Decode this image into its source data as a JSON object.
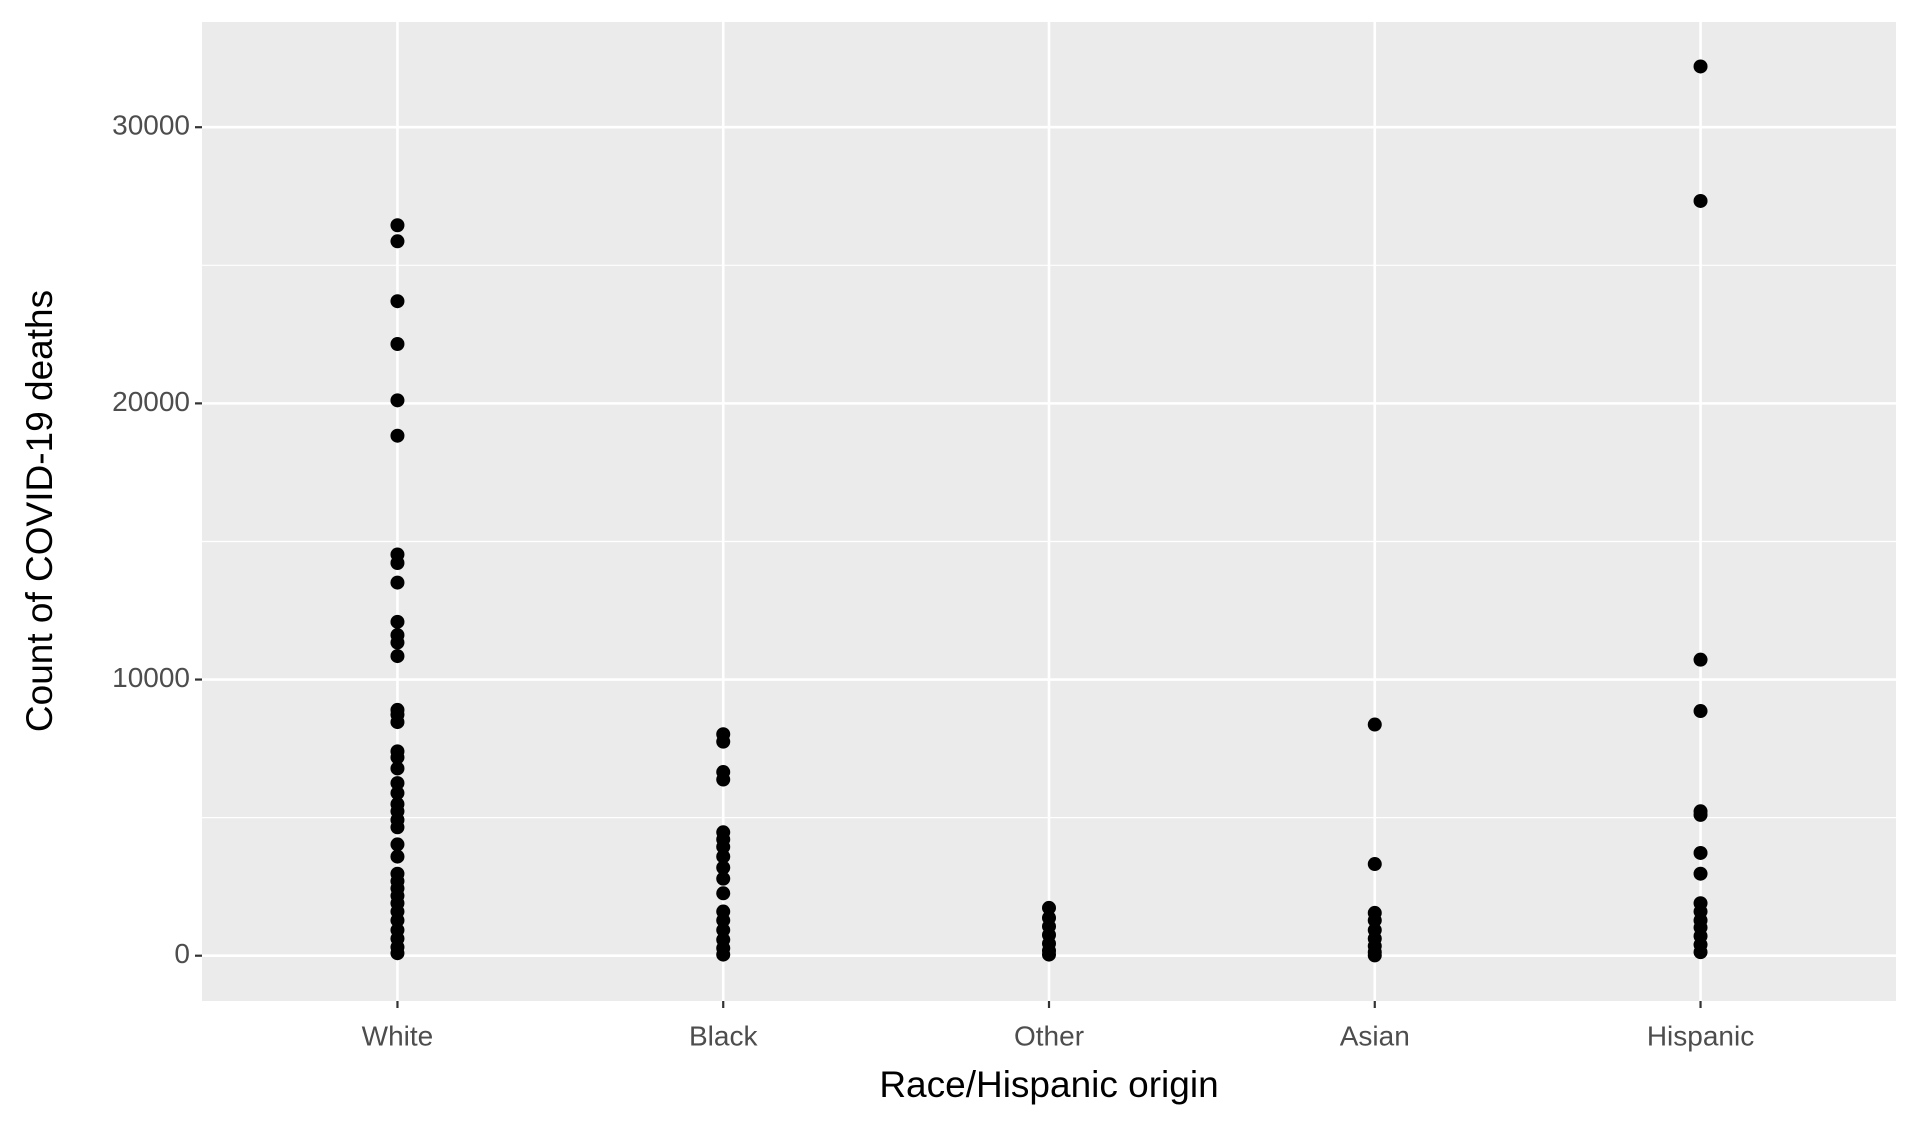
{
  "chart_data": {
    "type": "strip",
    "x_label": "Race/Hispanic origin",
    "y_label": "Count of COVID-19 deaths",
    "categories": [
      "White",
      "Black",
      "Other",
      "Asian",
      "Hispanic"
    ],
    "values": [
      [
        26450,
        25870,
        23700,
        22150,
        20110,
        18830,
        14530,
        14220,
        13510,
        12090,
        11610,
        11340,
        10850,
        8900,
        8730,
        8460,
        7400,
        7180,
        6780,
        6250,
        5890,
        5490,
        5230,
        4920,
        4650,
        4030,
        3590,
        2970,
        2700,
        2440,
        2170,
        1900,
        1600,
        1280,
        930,
        620,
        310,
        90
      ],
      [
        8020,
        7750,
        6650,
        6380,
        4470,
        4210,
        3940,
        3590,
        3190,
        2790,
        2260,
        1600,
        1280,
        930,
        580,
        270,
        40
      ],
      [
        1730,
        1370,
        1060,
        750,
        440,
        180,
        40
      ],
      [
        8370,
        3320,
        1550,
        1280,
        930,
        620,
        350,
        130,
        10
      ],
      [
        32200,
        27330,
        10720,
        8860,
        5230,
        5100,
        3720,
        2970,
        1900,
        1600,
        1280,
        1020,
        710,
        400,
        130
      ]
    ],
    "color": "#000000",
    "ylim": [
      -1640,
      33810
    ],
    "yticks": [
      0,
      10000,
      20000,
      30000
    ],
    "grid": true
  }
}
